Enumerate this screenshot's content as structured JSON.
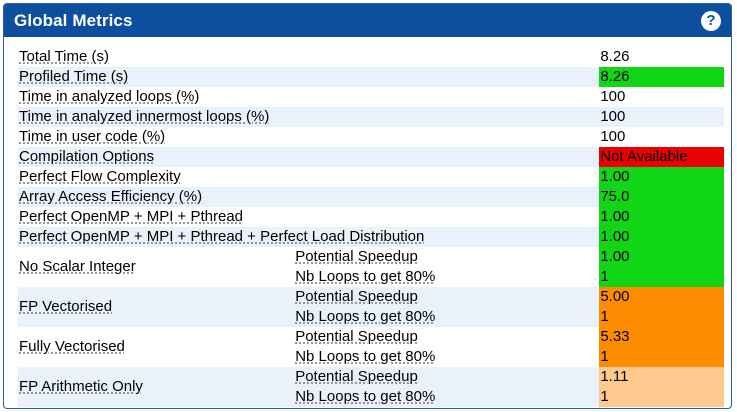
{
  "header": {
    "title": "Global Metrics",
    "help_label": "?"
  },
  "colors": {
    "header_bg": "#0d4f9e",
    "good": "#10d616",
    "bad": "#ea0000",
    "warn": "#fd8c00",
    "mild": "#fdc98e",
    "row_alt": "#e9f1fa"
  },
  "rows": [
    {
      "label": "Total Time (s)",
      "value": "8.26"
    },
    {
      "label": "Profiled Time (s)",
      "value": "8.26"
    },
    {
      "label": "Time in analyzed loops (%)",
      "value": "100"
    },
    {
      "label": "Time in analyzed innermost loops (%)",
      "value": "100"
    },
    {
      "label": "Time in user code (%)",
      "value": "100"
    },
    {
      "label": "Compilation Options",
      "value": "Not Available"
    },
    {
      "label": "Perfect Flow Complexity",
      "value": "1.00"
    },
    {
      "label": "Array Access Efficiency (%)",
      "value": "75.0"
    },
    {
      "label": "Perfect OpenMP + MPI + Pthread",
      "value": "1.00"
    },
    {
      "label": "Perfect OpenMP + MPI + Pthread + Perfect Load Distribution",
      "value": "1.00"
    }
  ],
  "groups": [
    {
      "label": "No Scalar Integer",
      "speedup_label": "Potential Speedup",
      "speedup": "1.00",
      "loops_label": "Nb Loops to get 80%",
      "loops": "1"
    },
    {
      "label": "FP Vectorised",
      "speedup_label": "Potential Speedup",
      "speedup": "5.00",
      "loops_label": "Nb Loops to get 80%",
      "loops": "1"
    },
    {
      "label": "Fully Vectorised",
      "speedup_label": "Potential Speedup",
      "speedup": "5.33",
      "loops_label": "Nb Loops to get 80%",
      "loops": "1"
    },
    {
      "label": "FP Arithmetic Only",
      "speedup_label": "Potential Speedup",
      "speedup": "1.11",
      "loops_label": "Nb Loops to get 80%",
      "loops": "1"
    }
  ]
}
